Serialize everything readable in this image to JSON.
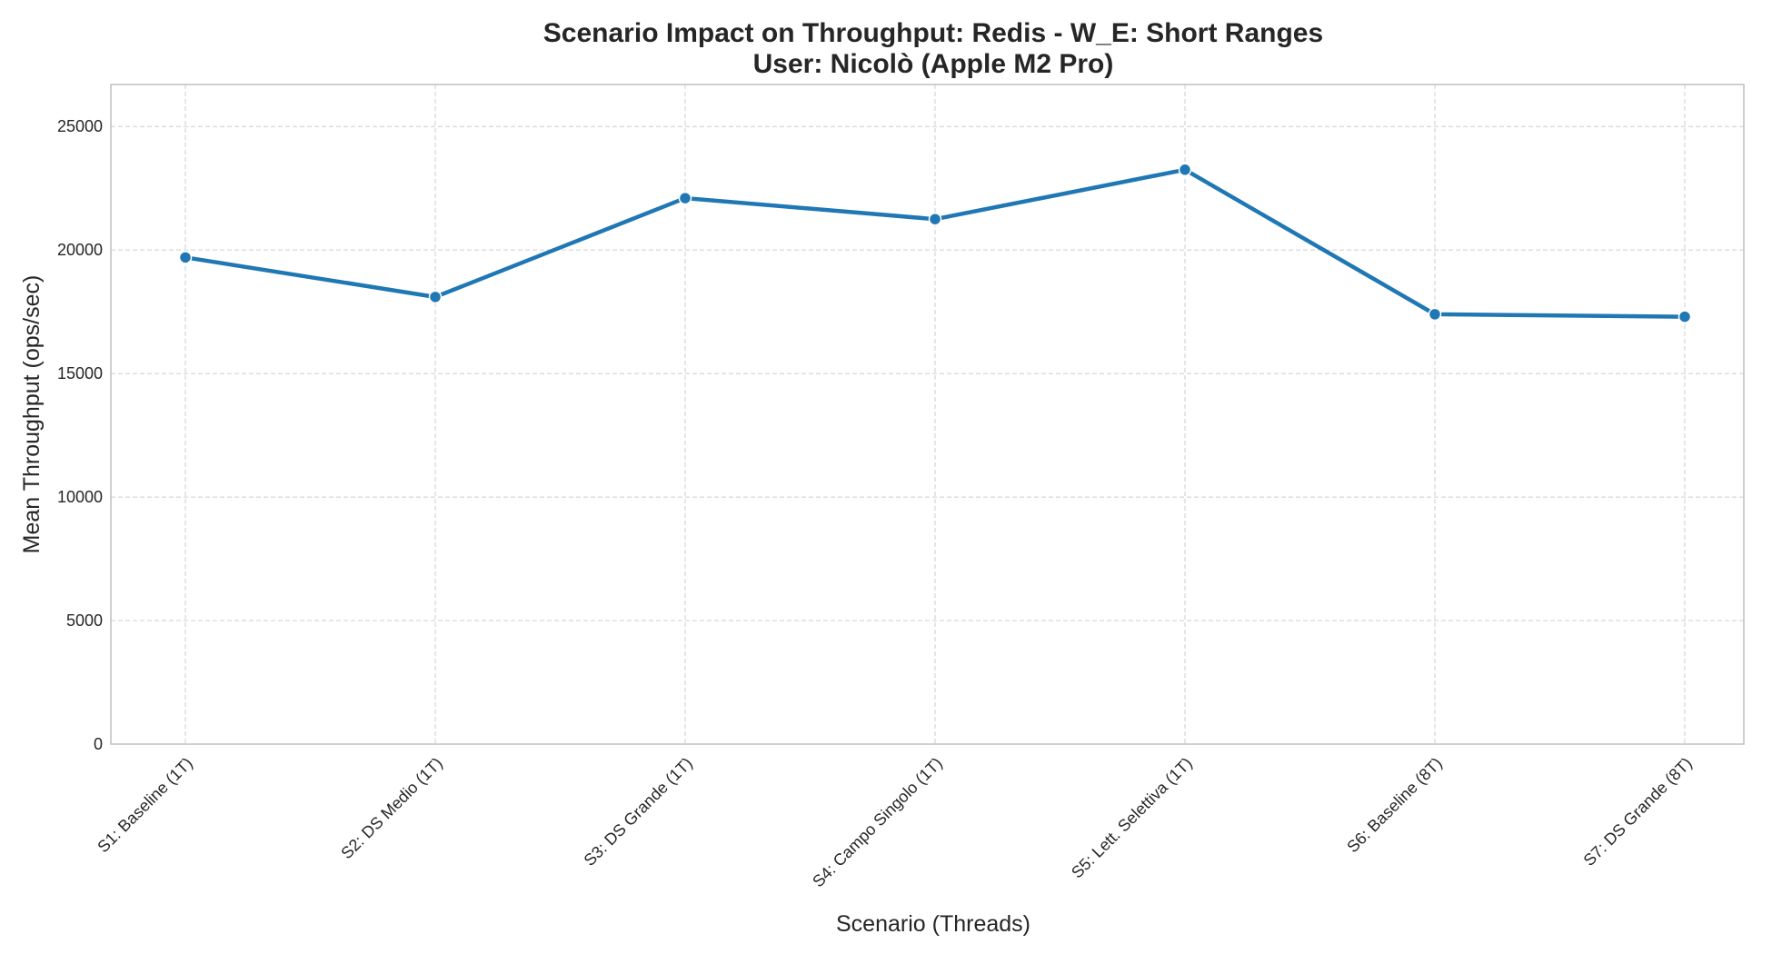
{
  "chart_data": {
    "type": "line",
    "title": "Scenario Impact on Throughput: Redis - W_E: Short Ranges",
    "subtitle": "User: Nicolò (Apple M2 Pro)",
    "xlabel": "Scenario (Threads)",
    "ylabel": "Mean Throughput (ops/sec)",
    "categories": [
      "S1: Baseline (1T)",
      "S2: DS Medio (1T)",
      "S3: DS Grande (1T)",
      "S4: Campo Singolo (1T)",
      "S5: Lett. Selettiva (1T)",
      "S6: Baseline (8T)",
      "S7: DS Grande (8T)"
    ],
    "series": [
      {
        "values": [
          19700,
          18100,
          22100,
          21250,
          23250,
          17400,
          17300
        ]
      }
    ],
    "yticks": [
      "0",
      "5000",
      "10000",
      "15000",
      "20000",
      "25000"
    ],
    "ylim": [
      0,
      26700
    ],
    "grid": true,
    "colors": {
      "line": "#1f77b4",
      "grid": "#cccccc",
      "frame": "#bfbfbf",
      "text": "#262626"
    }
  }
}
